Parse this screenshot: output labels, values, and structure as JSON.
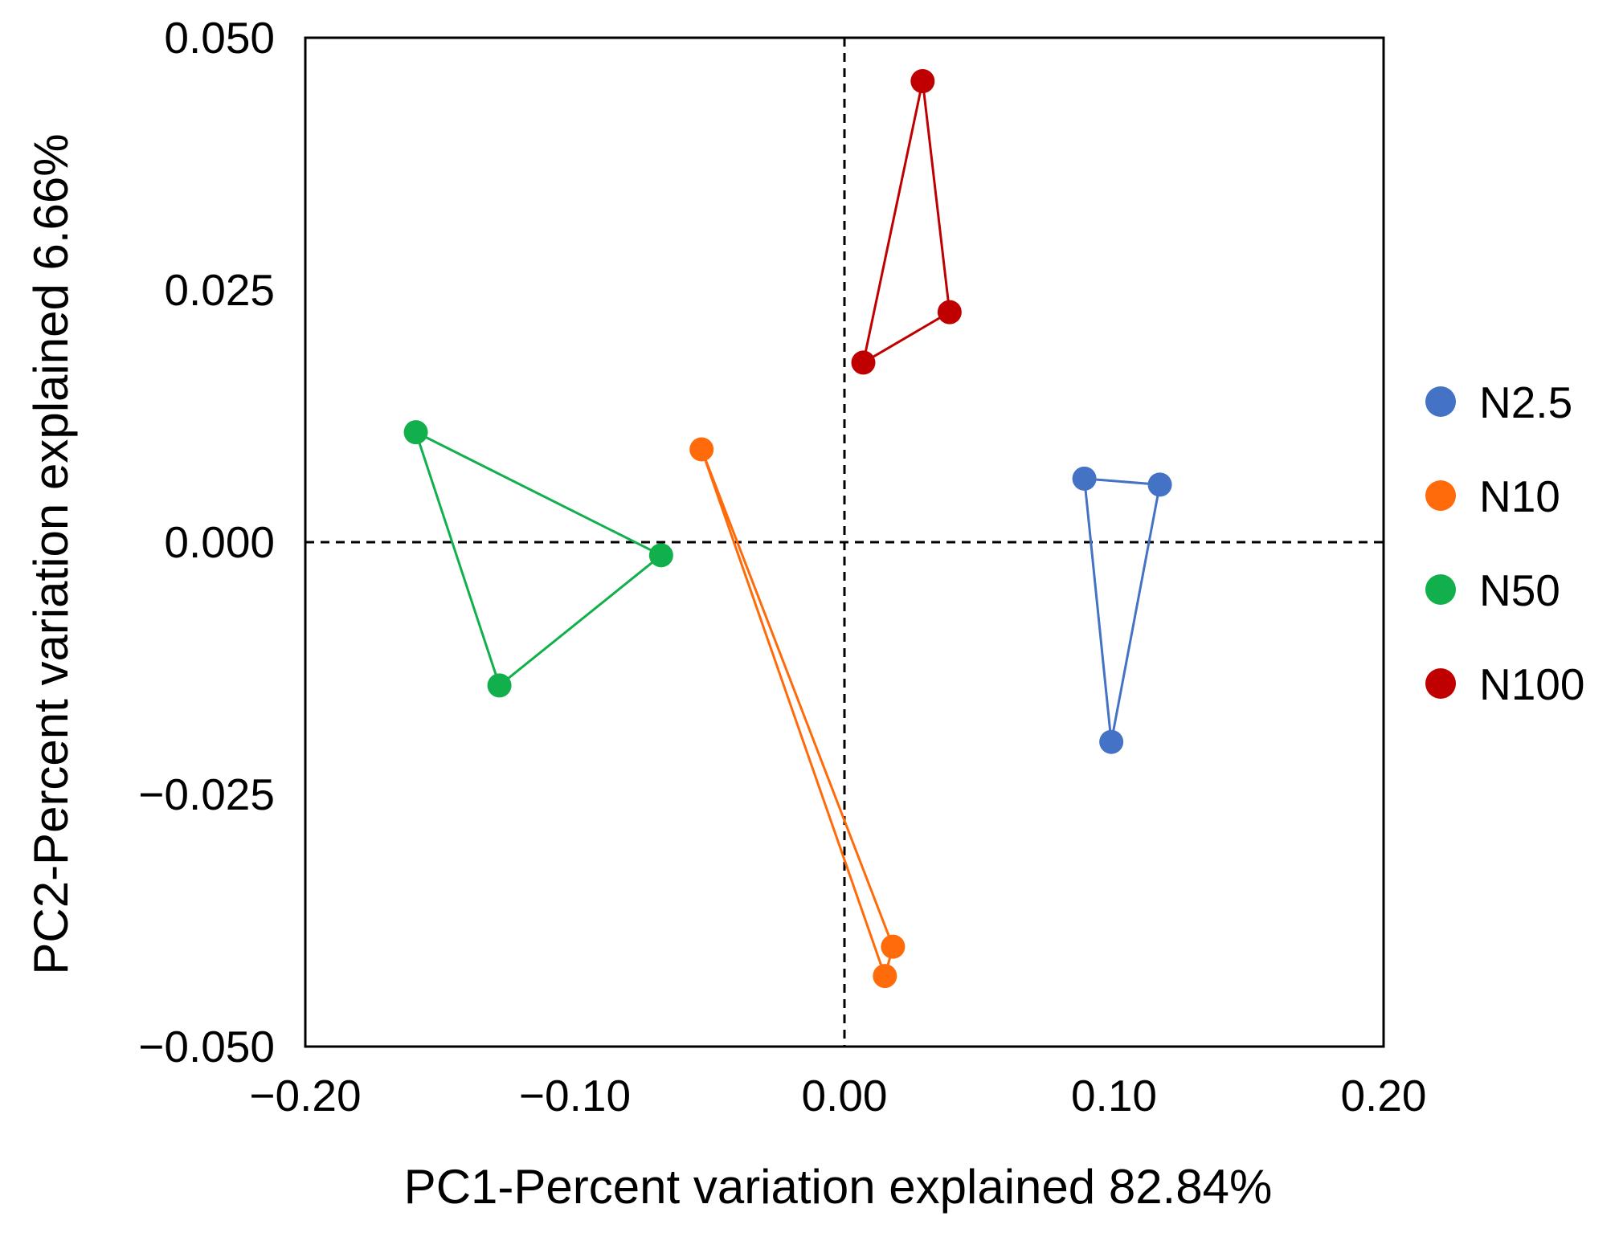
{
  "chart_data": {
    "type": "scatter",
    "title": "",
    "xlabel": "PC1-Percent variation explained 82.84%",
    "ylabel": "PC2-Percent variation explained 6.66%",
    "xlim": [
      -0.2,
      0.2
    ],
    "ylim": [
      -0.05,
      0.05
    ],
    "x_ticks": [
      -0.2,
      -0.1,
      0.0,
      0.1,
      0.2
    ],
    "x_tick_labels": [
      "−0.20",
      "−0.10",
      "0.00",
      "0.10",
      "0.20"
    ],
    "y_ticks": [
      0.05,
      0.025,
      0.0,
      -0.025,
      -0.05
    ],
    "y_tick_labels": [
      "0.050",
      "0.025",
      "0.000",
      "−0.025",
      "−0.050"
    ],
    "reference_lines": {
      "x": 0,
      "y": 0,
      "style": "dashed"
    },
    "grid": false,
    "legend_position": "right",
    "hull_outline": "polygon",
    "series": [
      {
        "name": "N2.5",
        "color": "#4472C4",
        "points": [
          [
            0.089,
            0.0063
          ],
          [
            0.117,
            0.0057
          ],
          [
            0.099,
            -0.0198
          ]
        ]
      },
      {
        "name": "N10",
        "color": "#FF6A0A",
        "points": [
          [
            -0.053,
            0.0092
          ],
          [
            0.018,
            -0.0401
          ],
          [
            0.015,
            -0.043
          ]
        ]
      },
      {
        "name": "N50",
        "color": "#12B04C",
        "points": [
          [
            -0.159,
            0.0109
          ],
          [
            -0.068,
            -0.0013
          ],
          [
            -0.128,
            -0.0142
          ]
        ]
      },
      {
        "name": "N100",
        "color": "#C00000",
        "points": [
          [
            0.029,
            0.0457
          ],
          [
            0.039,
            0.0228
          ],
          [
            0.007,
            0.0178
          ]
        ]
      }
    ]
  }
}
